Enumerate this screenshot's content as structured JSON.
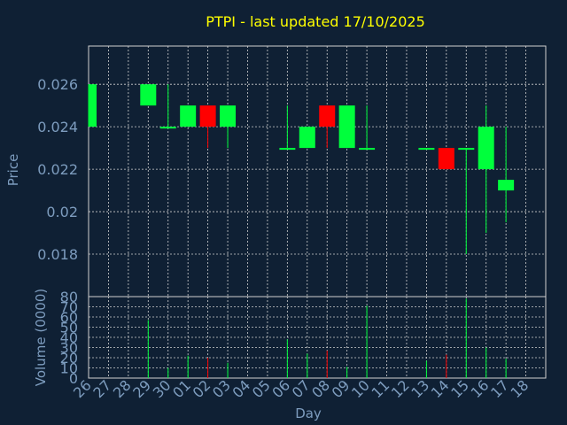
{
  "colors": {
    "background": "#0f2034",
    "title": "#ffff00",
    "axis_label": "#7d9cbe",
    "tick_label": "#7d9cbe",
    "grid": "#d0d0d0",
    "up": "#00ff3c",
    "down": "#ff0000"
  },
  "chart_data": {
    "type": "candlestick",
    "title": "PTPI - last updated 17/10/2025",
    "xlabel": "Day",
    "x_ticks": [
      "26",
      "27",
      "28",
      "29",
      "30",
      "01",
      "02",
      "03",
      "04",
      "05",
      "06",
      "07",
      "08",
      "09",
      "10",
      "11",
      "12",
      "13",
      "14",
      "15",
      "16",
      "17",
      "18"
    ],
    "price_panel": {
      "ylabel": "Price",
      "y_ticks": [
        "0.026",
        "0.024",
        "0.022",
        "0.02",
        "0.018"
      ],
      "y_tick_values": [
        0.026,
        0.024,
        0.022,
        0.02,
        0.018
      ],
      "ylim": [
        0.016,
        0.0278
      ],
      "candles": [
        {
          "day": "26",
          "open": 0.024,
          "high": 0.026,
          "low": 0.024,
          "close": 0.026
        },
        {
          "day": "29",
          "open": 0.025,
          "high": 0.026,
          "low": 0.025,
          "close": 0.026
        },
        {
          "day": "30",
          "open": 0.024,
          "high": 0.026,
          "low": 0.024,
          "close": 0.024
        },
        {
          "day": "01",
          "open": 0.024,
          "high": 0.025,
          "low": 0.024,
          "close": 0.025
        },
        {
          "day": "02",
          "open": 0.025,
          "high": 0.025,
          "low": 0.023,
          "close": 0.024
        },
        {
          "day": "03",
          "open": 0.024,
          "high": 0.025,
          "low": 0.023,
          "close": 0.025
        },
        {
          "day": "06",
          "open": 0.023,
          "high": 0.025,
          "low": 0.023,
          "close": 0.023
        },
        {
          "day": "07",
          "open": 0.023,
          "high": 0.024,
          "low": 0.023,
          "close": 0.024
        },
        {
          "day": "08",
          "open": 0.025,
          "high": 0.025,
          "low": 0.023,
          "close": 0.024
        },
        {
          "day": "09",
          "open": 0.023,
          "high": 0.025,
          "low": 0.023,
          "close": 0.025
        },
        {
          "day": "10",
          "open": 0.023,
          "high": 0.025,
          "low": 0.023,
          "close": 0.023
        },
        {
          "day": "13",
          "open": 0.023,
          "high": 0.023,
          "low": 0.023,
          "close": 0.023
        },
        {
          "day": "14",
          "open": 0.023,
          "high": 0.023,
          "low": 0.022,
          "close": 0.022
        },
        {
          "day": "15",
          "open": 0.023,
          "high": 0.023,
          "low": 0.018,
          "close": 0.023
        },
        {
          "day": "16",
          "open": 0.022,
          "high": 0.025,
          "low": 0.019,
          "close": 0.024
        },
        {
          "day": "17",
          "open": 0.021,
          "high": 0.024,
          "low": 0.0195,
          "close": 0.0215
        }
      ]
    },
    "volume_panel": {
      "ylabel": "Volume (0000)",
      "y_ticks": [
        "80",
        "70",
        "60",
        "50",
        "40",
        "30",
        "20",
        "10",
        "0"
      ],
      "y_tick_values": [
        80,
        70,
        60,
        50,
        40,
        30,
        20,
        10,
        0
      ],
      "ylim": [
        0,
        80
      ],
      "bars": [
        {
          "day": "29",
          "value": 57,
          "direction": "up"
        },
        {
          "day": "30",
          "value": 10,
          "direction": "up"
        },
        {
          "day": "01",
          "value": 22,
          "direction": "up"
        },
        {
          "day": "02",
          "value": 20,
          "direction": "down"
        },
        {
          "day": "03",
          "value": 15,
          "direction": "up"
        },
        {
          "day": "06",
          "value": 38,
          "direction": "up"
        },
        {
          "day": "07",
          "value": 24,
          "direction": "up"
        },
        {
          "day": "08",
          "value": 27,
          "direction": "down"
        },
        {
          "day": "09",
          "value": 11,
          "direction": "up"
        },
        {
          "day": "10",
          "value": 71,
          "direction": "up"
        },
        {
          "day": "13",
          "value": 17,
          "direction": "up"
        },
        {
          "day": "14",
          "value": 23,
          "direction": "down"
        },
        {
          "day": "15",
          "value": 78,
          "direction": "up"
        },
        {
          "day": "16",
          "value": 30,
          "direction": "up"
        },
        {
          "day": "17",
          "value": 19,
          "direction": "up"
        }
      ]
    }
  }
}
